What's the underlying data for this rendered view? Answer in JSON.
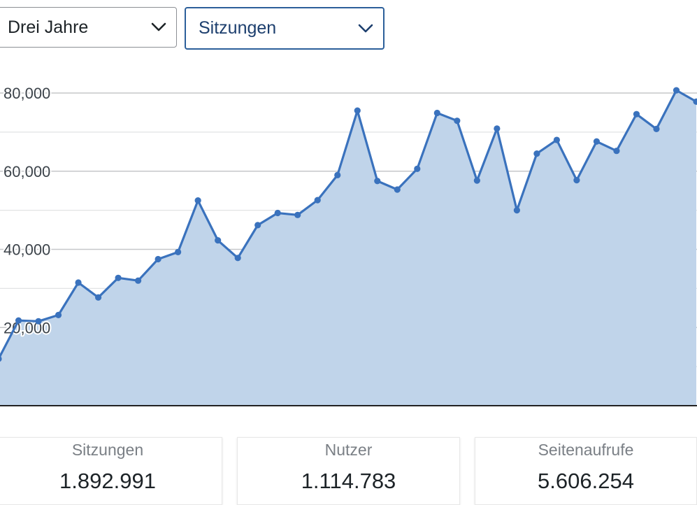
{
  "controls": {
    "range_select": {
      "selected": "Drei Jahre"
    },
    "metric_select": {
      "selected": "Sitzungen"
    }
  },
  "colors": {
    "line": "#3a72bd",
    "area": "#c0d4ea",
    "grid": "#d0d0d0",
    "axis": "#222222",
    "active_select_border": "#2c5f9a"
  },
  "chart_data": {
    "type": "area",
    "title": "",
    "xlabel": "",
    "ylabel": "",
    "ylim": [
      0,
      80000
    ],
    "y_ticks": [
      20000,
      40000,
      60000,
      80000
    ],
    "y_tick_labels": [
      "20,000",
      "40,000",
      "60,000",
      "80,000"
    ],
    "grid": true,
    "series": [
      {
        "name": "Sitzungen",
        "values": [
          12000,
          21800,
          21600,
          23200,
          31500,
          27700,
          32700,
          32000,
          37500,
          39300,
          52500,
          42300,
          37800,
          46200,
          49300,
          48800,
          52600,
          59000,
          75500,
          57500,
          55300,
          60600,
          74900,
          72900,
          57600,
          70900,
          50000,
          64500,
          68000,
          57700,
          67600,
          65200,
          74600,
          70800,
          80700,
          77800
        ]
      }
    ]
  },
  "stats": [
    {
      "label": "Sitzungen",
      "value": "1.892.991"
    },
    {
      "label": "Nutzer",
      "value": "1.114.783"
    },
    {
      "label": "Seitenaufrufe",
      "value": "5.606.254"
    }
  ]
}
